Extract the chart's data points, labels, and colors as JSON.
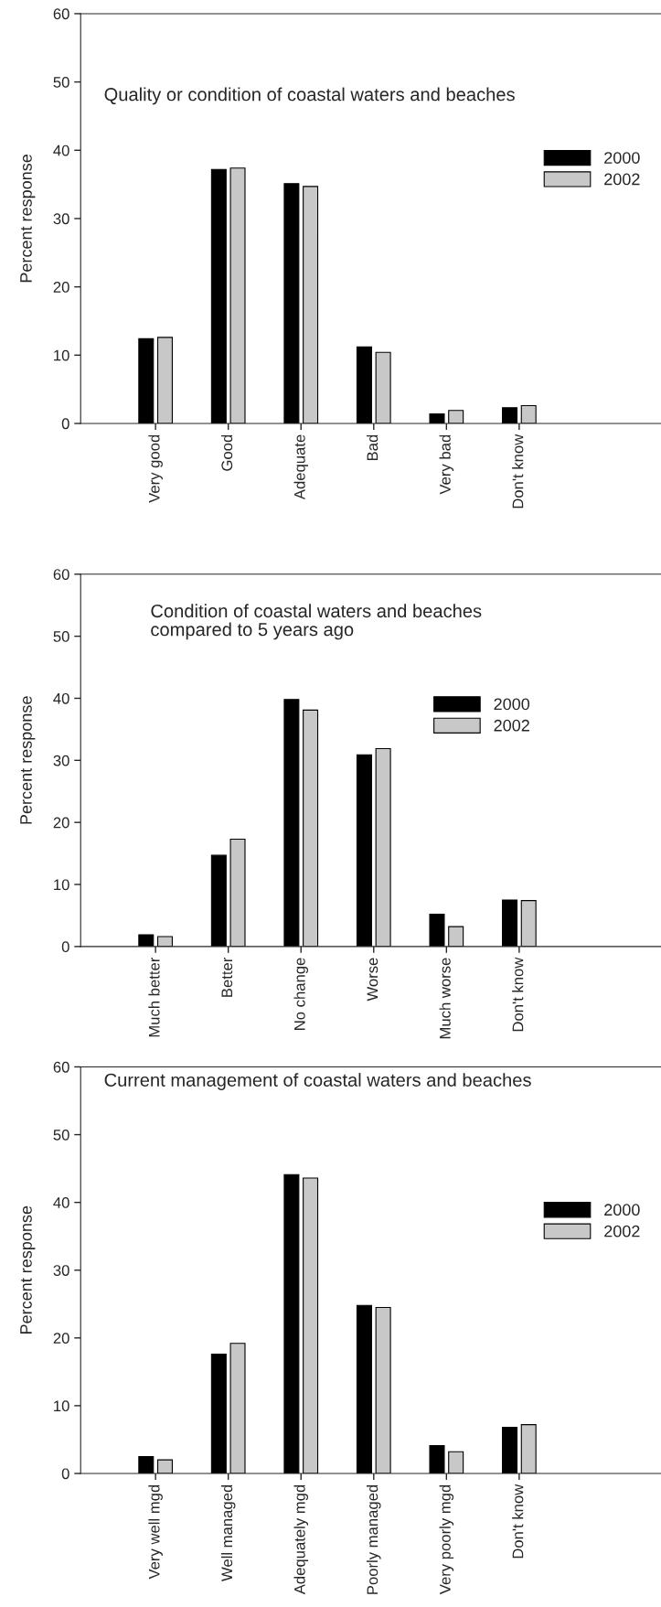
{
  "chart_data": [
    {
      "type": "bar",
      "title": "Quality or condition of coastal waters and beaches",
      "ylabel": "Percent response",
      "categories": [
        "Very good",
        "Good",
        "Adequate",
        "Bad",
        "Very bad",
        "Don't know"
      ],
      "series": [
        {
          "name": "2000",
          "color": "#000000",
          "values": [
            12.4,
            37.2,
            35.1,
            11.2,
            1.4,
            2.3
          ]
        },
        {
          "name": "2002",
          "color": "#c8c8c8",
          "values": [
            12.6,
            37.4,
            34.7,
            10.4,
            1.9,
            2.6
          ]
        }
      ],
      "ylim": [
        0,
        60
      ],
      "yticks": [
        0,
        10,
        20,
        30,
        40,
        50,
        60
      ],
      "legend": "right",
      "grid": false
    },
    {
      "type": "bar",
      "title": "Condition of coastal waters and beaches\ncompared to 5 years ago",
      "ylabel": "Percent response",
      "categories": [
        "Much better",
        "Better",
        "No change",
        "Worse",
        "Much worse",
        "Don't know"
      ],
      "series": [
        {
          "name": "2000",
          "color": "#000000",
          "values": [
            1.9,
            14.7,
            39.8,
            30.9,
            5.2,
            7.5
          ]
        },
        {
          "name": "2002",
          "color": "#c8c8c8",
          "values": [
            1.6,
            17.3,
            38.1,
            31.9,
            3.2,
            7.4
          ]
        }
      ],
      "ylim": [
        0,
        60
      ],
      "yticks": [
        0,
        10,
        20,
        30,
        40,
        50,
        60
      ],
      "legend": "right",
      "grid": false
    },
    {
      "type": "bar",
      "title": "Current management of coastal waters and beaches",
      "ylabel": "Percent response",
      "categories": [
        "Very well mgd",
        "Well managed",
        "Adequately mgd",
        "Poorly managed",
        "Very poorly mgd",
        "Don't know"
      ],
      "series": [
        {
          "name": "2000",
          "color": "#000000",
          "values": [
            2.5,
            17.6,
            44.1,
            24.8,
            4.1,
            6.8
          ]
        },
        {
          "name": "2002",
          "color": "#c8c8c8",
          "values": [
            2.0,
            19.2,
            43.6,
            24.5,
            3.2,
            7.2
          ]
        }
      ],
      "ylim": [
        0,
        60
      ],
      "yticks": [
        0,
        10,
        20,
        30,
        40,
        50,
        60
      ],
      "legend": "right",
      "grid": false
    }
  ]
}
